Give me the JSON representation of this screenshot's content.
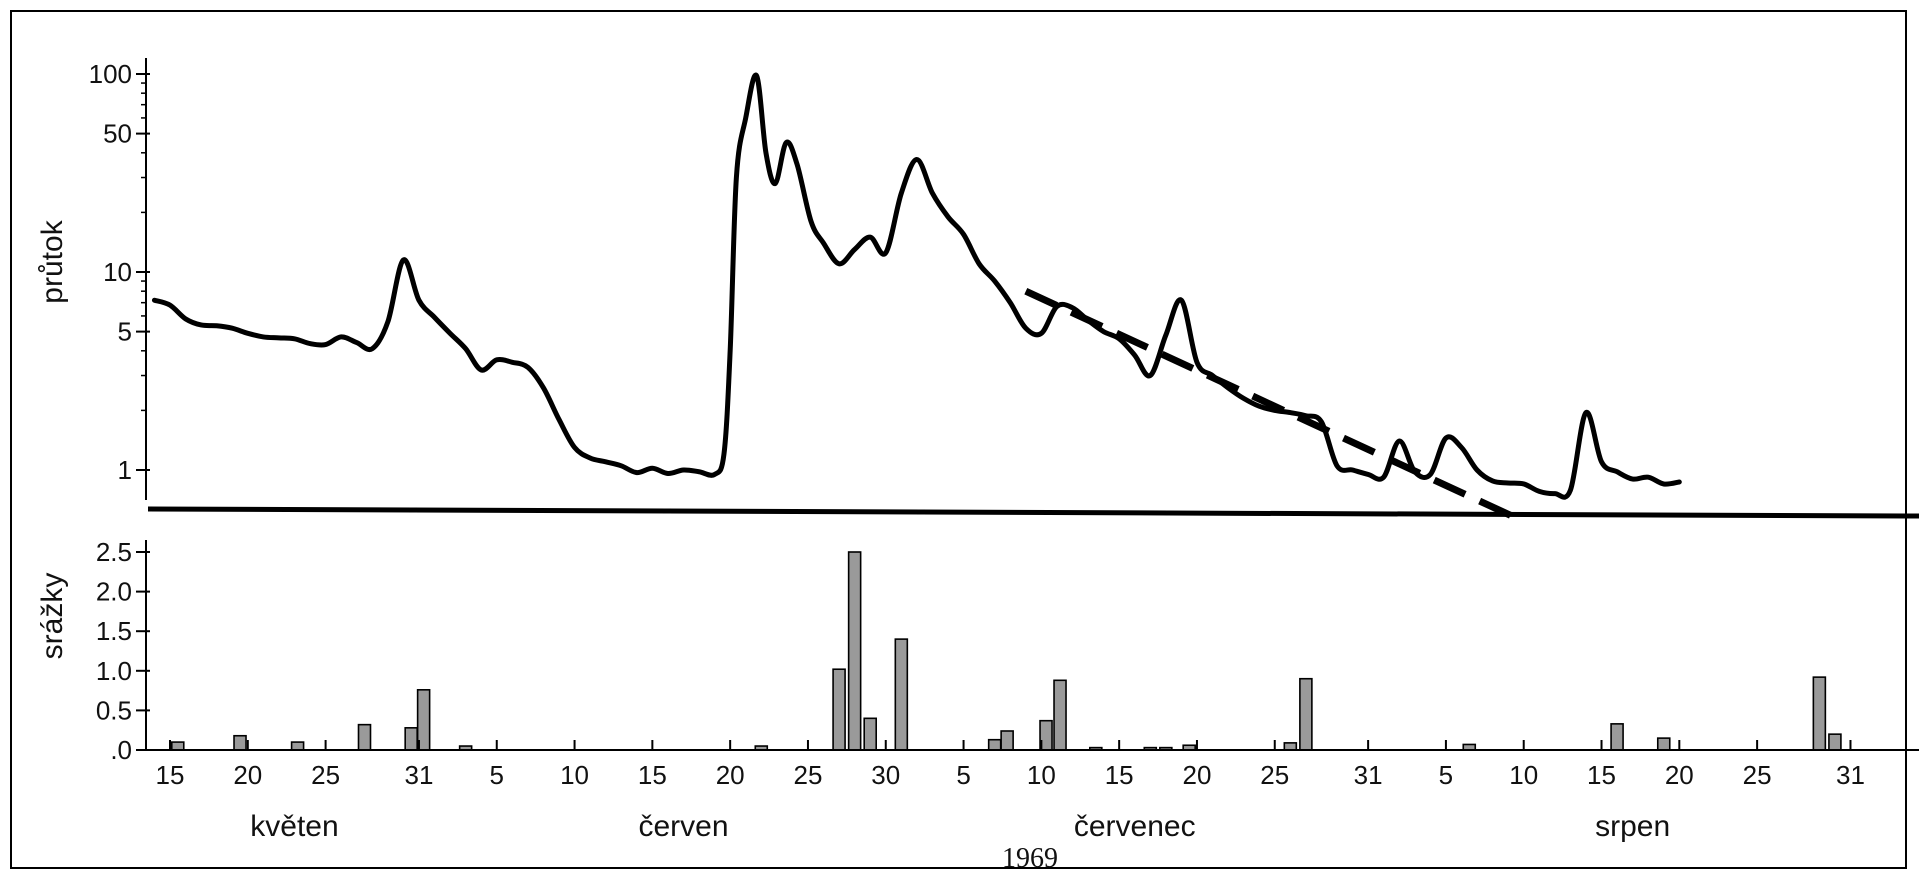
{
  "chart_data": {
    "type": "line",
    "year_label": "1969",
    "x_axis": {
      "day_ticks": [
        {
          "day": 0,
          "label": "15"
        },
        {
          "day": 5,
          "label": "20"
        },
        {
          "day": 10,
          "label": "25"
        },
        {
          "day": 16,
          "label": "31"
        },
        {
          "day": 21,
          "label": "5"
        },
        {
          "day": 26,
          "label": "10"
        },
        {
          "day": 31,
          "label": "15"
        },
        {
          "day": 36,
          "label": "20"
        },
        {
          "day": 41,
          "label": "25"
        },
        {
          "day": 46,
          "label": "30"
        },
        {
          "day": 51,
          "label": "5"
        },
        {
          "day": 56,
          "label": "10"
        },
        {
          "day": 61,
          "label": "15"
        },
        {
          "day": 66,
          "label": "20"
        },
        {
          "day": 71,
          "label": "25"
        },
        {
          "day": 77,
          "label": "31"
        },
        {
          "day": 82,
          "label": "5"
        },
        {
          "day": 87,
          "label": "10"
        },
        {
          "day": 92,
          "label": "15"
        },
        {
          "day": 97,
          "label": "20"
        },
        {
          "day": 102,
          "label": "25"
        },
        {
          "day": 108,
          "label": "31"
        }
      ],
      "months": [
        {
          "label": "květen",
          "day": 8
        },
        {
          "label": "červen",
          "day": 33
        },
        {
          "label": "červenec",
          "day": 62
        },
        {
          "label": "srpen",
          "day": 94
        }
      ],
      "range": [
        -1,
        109
      ]
    },
    "flow": {
      "ylabel": "průtok",
      "scale": "log",
      "ylim": [
        0.7,
        110
      ],
      "yticks": [
        {
          "v": 1,
          "label": "1"
        },
        {
          "v": 5,
          "label": "5"
        },
        {
          "v": 10,
          "label": "10"
        },
        {
          "v": 50,
          "label": "50"
        },
        {
          "v": 100,
          "label": "100"
        }
      ],
      "points": [
        [
          -1,
          7.2
        ],
        [
          0,
          6.8
        ],
        [
          1,
          5.8
        ],
        [
          2,
          5.4
        ],
        [
          3,
          5.35
        ],
        [
          4,
          5.2
        ],
        [
          5,
          4.9
        ],
        [
          6,
          4.7
        ],
        [
          7,
          4.65
        ],
        [
          8,
          4.6
        ],
        [
          9,
          4.35
        ],
        [
          10,
          4.3
        ],
        [
          11,
          4.7
        ],
        [
          12,
          4.4
        ],
        [
          13,
          4.1
        ],
        [
          14,
          5.6
        ],
        [
          15,
          11.5
        ],
        [
          16,
          7.2
        ],
        [
          17,
          5.9
        ],
        [
          18,
          4.9
        ],
        [
          19,
          4.1
        ],
        [
          20,
          3.2
        ],
        [
          21,
          3.6
        ],
        [
          22,
          3.5
        ],
        [
          23,
          3.3
        ],
        [
          24,
          2.6
        ],
        [
          25,
          1.8
        ],
        [
          26,
          1.3
        ],
        [
          27,
          1.15
        ],
        [
          28,
          1.1
        ],
        [
          29,
          1.05
        ],
        [
          30,
          0.97
        ],
        [
          31,
          1.02
        ],
        [
          32,
          0.96
        ],
        [
          33,
          1.0
        ],
        [
          34,
          0.98
        ],
        [
          35,
          0.95
        ],
        [
          35.6,
          1.2
        ],
        [
          36.0,
          4.0
        ],
        [
          36.4,
          30
        ],
        [
          37.0,
          60
        ],
        [
          37.7,
          98
        ],
        [
          38.3,
          40
        ],
        [
          38.9,
          28
        ],
        [
          39.6,
          45
        ],
        [
          40.3,
          35
        ],
        [
          41.2,
          18
        ],
        [
          42.0,
          14
        ],
        [
          43.0,
          11
        ],
        [
          44.0,
          13
        ],
        [
          45.0,
          15
        ],
        [
          46.0,
          12.5
        ],
        [
          47.0,
          25
        ],
        [
          48.0,
          37
        ],
        [
          49.0,
          25
        ],
        [
          50.0,
          19
        ],
        [
          51.0,
          15.5
        ],
        [
          52.0,
          11
        ],
        [
          53.0,
          9
        ],
        [
          54.0,
          7
        ],
        [
          55.0,
          5.2
        ],
        [
          56.0,
          4.9
        ],
        [
          57.0,
          6.7
        ],
        [
          58.0,
          6.6
        ],
        [
          59.0,
          5.7
        ],
        [
          60.0,
          5.0
        ],
        [
          61.0,
          4.6
        ],
        [
          62.0,
          3.8
        ],
        [
          63.0,
          3.0
        ],
        [
          64.0,
          4.8
        ],
        [
          65.0,
          7.2
        ],
        [
          66.0,
          3.5
        ],
        [
          67.0,
          3.0
        ],
        [
          68.0,
          2.6
        ],
        [
          69.0,
          2.3
        ],
        [
          70.0,
          2.1
        ],
        [
          71.0,
          2.0
        ],
        [
          72.0,
          1.95
        ],
        [
          73.0,
          1.88
        ],
        [
          74.0,
          1.75
        ],
        [
          75.0,
          1.05
        ],
        [
          76.0,
          1.0
        ],
        [
          77.0,
          0.95
        ],
        [
          78.0,
          0.92
        ],
        [
          79.0,
          1.4
        ],
        [
          80.0,
          0.98
        ],
        [
          81.0,
          0.95
        ],
        [
          82.0,
          1.45
        ],
        [
          83.0,
          1.3
        ],
        [
          84.0,
          1.0
        ],
        [
          85.0,
          0.88
        ],
        [
          86.0,
          0.86
        ],
        [
          87.0,
          0.85
        ],
        [
          88.0,
          0.78
        ],
        [
          89.0,
          0.76
        ],
        [
          90.0,
          0.79
        ],
        [
          91.0,
          1.95
        ],
        [
          92.0,
          1.1
        ],
        [
          93.0,
          0.98
        ],
        [
          94.0,
          0.9
        ],
        [
          95.0,
          0.92
        ],
        [
          96.0,
          0.85
        ],
        [
          97.0,
          0.87
        ]
      ],
      "trend_line": {
        "from": [
          55,
          8.0
        ],
        "to": [
          87,
          0.55
        ]
      }
    },
    "precipitation": {
      "ylabel": "srážky",
      "ylim": [
        0,
        2.7
      ],
      "yticks": [
        {
          "v": 0,
          "label": ".0"
        },
        {
          "v": 0.5,
          "label": "0.5"
        },
        {
          "v": 1.0,
          "label": "1.0"
        },
        {
          "v": 1.5,
          "label": "1.5"
        },
        {
          "v": 2.0,
          "label": "2.0"
        },
        {
          "v": 2.5,
          "label": "2.5"
        }
      ],
      "bars": [
        {
          "day": 0.5,
          "value": 0.1
        },
        {
          "day": 4.5,
          "value": 0.18
        },
        {
          "day": 8.2,
          "value": 0.1
        },
        {
          "day": 12.5,
          "value": 0.32
        },
        {
          "day": 15.5,
          "value": 0.28
        },
        {
          "day": 16.3,
          "value": 0.76
        },
        {
          "day": 19.0,
          "value": 0.05
        },
        {
          "day": 38.0,
          "value": 0.05
        },
        {
          "day": 43.0,
          "value": 1.02
        },
        {
          "day": 44.0,
          "value": 2.5
        },
        {
          "day": 45.0,
          "value": 0.4
        },
        {
          "day": 47.0,
          "value": 1.4
        },
        {
          "day": 53.0,
          "value": 0.13
        },
        {
          "day": 53.8,
          "value": 0.24
        },
        {
          "day": 56.3,
          "value": 0.37
        },
        {
          "day": 57.2,
          "value": 0.88
        },
        {
          "day": 59.5,
          "value": 0.03
        },
        {
          "day": 63.0,
          "value": 0.03
        },
        {
          "day": 64.0,
          "value": 0.03
        },
        {
          "day": 65.5,
          "value": 0.06
        },
        {
          "day": 72.0,
          "value": 0.09
        },
        {
          "day": 73.0,
          "value": 0.9
        },
        {
          "day": 83.5,
          "value": 0.07
        },
        {
          "day": 93.0,
          "value": 0.33
        },
        {
          "day": 96.0,
          "value": 0.15
        },
        {
          "day": 106.0,
          "value": 0.92
        },
        {
          "day": 107.0,
          "value": 0.2
        }
      ],
      "bar_color": "#9a9a9a"
    },
    "line_color": "#000000"
  }
}
